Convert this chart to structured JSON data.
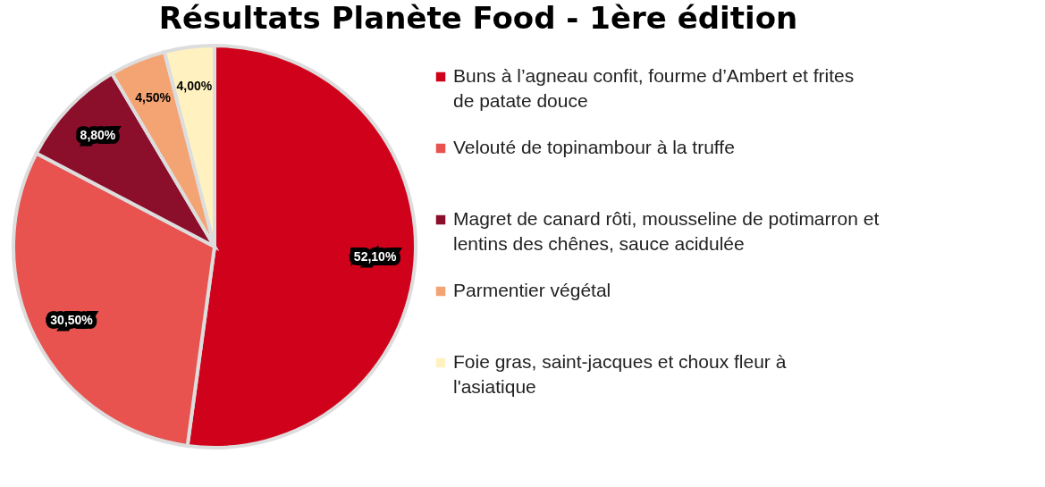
{
  "chart_data": {
    "type": "pie",
    "title": "Résultats Planète Food - 1ère édition",
    "categories": [
      "Buns à l’agneau confit, fourme d’Ambert et frites de patate douce",
      "Velouté de topinambour à la truffe",
      "Magret de canard rôti, mousseline de potimarron et lentins des chênes, sauce acidulée",
      "Parmentier végétal",
      "Foie gras, saint-jacques et choux fleur à l'asiatique"
    ],
    "values": [
      52.1,
      30.5,
      8.8,
      4.5,
      4.0
    ],
    "value_labels": [
      "52,10%",
      "30,50%",
      "8,80%",
      "4,50%",
      "4,00%"
    ],
    "colors": [
      "#d0021b",
      "#e8524f",
      "#8b0e2a",
      "#f4a373",
      "#fff2c0"
    ],
    "legend": "right"
  }
}
